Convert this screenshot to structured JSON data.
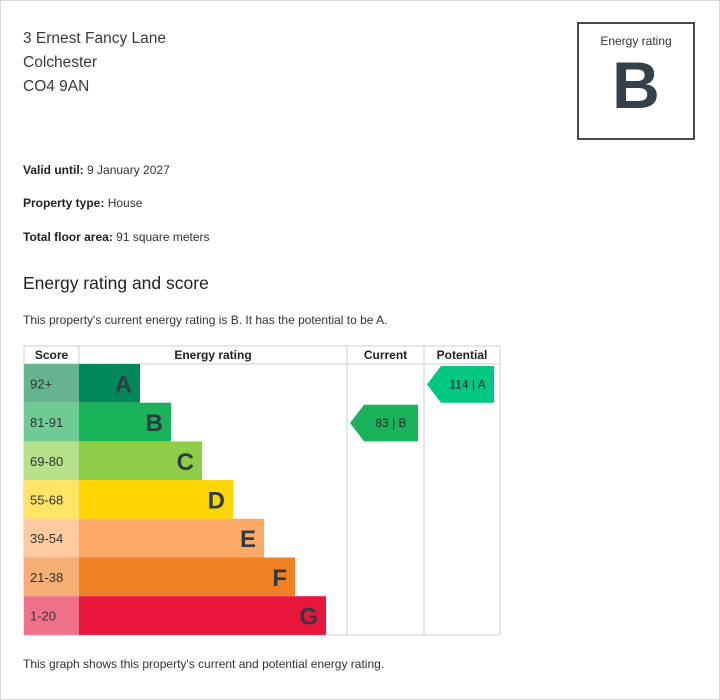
{
  "address": {
    "line1": "3 Ernest Fancy Lane",
    "line2": "Colchester",
    "line3": "CO4 9AN"
  },
  "rating_box": {
    "label": "Energy rating",
    "value": "B"
  },
  "details": {
    "valid_until_label": "Valid until:",
    "valid_until_value": "9 January 2027",
    "property_type_label": "Property type:",
    "property_type_value": "House",
    "floor_area_label": "Total floor area:",
    "floor_area_value": "91 square meters"
  },
  "section": {
    "title": "Energy rating and score",
    "description": "This property's current energy rating is B. It has the potential to be A.",
    "footnote": "This graph shows this property's current and potential energy rating."
  },
  "chart_data": {
    "type": "table",
    "headers": {
      "score": "Score",
      "rating": "Energy rating",
      "current": "Current",
      "potential": "Potential"
    },
    "bands": [
      {
        "range": "92+",
        "letter": "A",
        "color": "#00875a",
        "score_color": "#66b48e"
      },
      {
        "range": "81-91",
        "letter": "B",
        "color": "#19b459",
        "score_color": "#6fcb94"
      },
      {
        "range": "69-80",
        "letter": "C",
        "color": "#8dce46",
        "score_color": "#b7e08a"
      },
      {
        "range": "55-68",
        "letter": "D",
        "color": "#ffd500",
        "score_color": "#ffe466"
      },
      {
        "range": "39-54",
        "letter": "E",
        "color": "#fcaa65",
        "score_color": "#fdcb9f"
      },
      {
        "range": "21-38",
        "letter": "F",
        "color": "#ef8023",
        "score_color": "#f5ae73"
      },
      {
        "range": "1-20",
        "letter": "G",
        "color": "#e9153b",
        "score_color": "#f0728a"
      }
    ],
    "current": {
      "score": 83,
      "letter": "B",
      "label": "83 | B",
      "color": "#19b459"
    },
    "potential": {
      "score": 114,
      "letter": "A",
      "label": "114 | A",
      "color": "#00c781"
    }
  }
}
